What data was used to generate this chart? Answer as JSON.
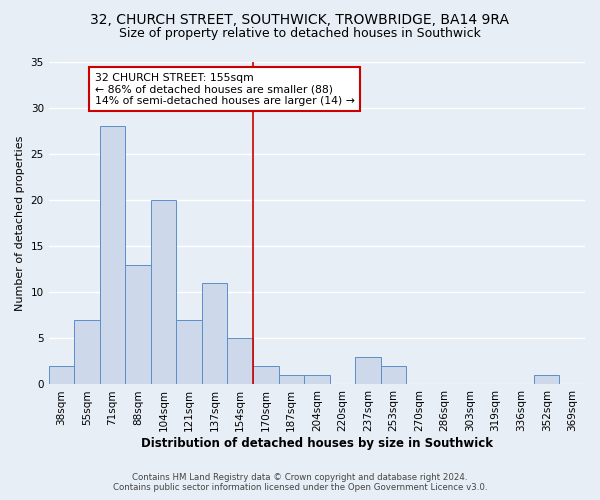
{
  "title": "32, CHURCH STREET, SOUTHWICK, TROWBRIDGE, BA14 9RA",
  "subtitle": "Size of property relative to detached houses in Southwick",
  "xlabel": "Distribution of detached houses by size in Southwick",
  "ylabel": "Number of detached properties",
  "footer_line1": "Contains HM Land Registry data © Crown copyright and database right 2024.",
  "footer_line2": "Contains public sector information licensed under the Open Government Licence v3.0.",
  "bin_labels": [
    "38sqm",
    "55sqm",
    "71sqm",
    "88sqm",
    "104sqm",
    "121sqm",
    "137sqm",
    "154sqm",
    "170sqm",
    "187sqm",
    "204sqm",
    "220sqm",
    "237sqm",
    "253sqm",
    "270sqm",
    "286sqm",
    "303sqm",
    "319sqm",
    "336sqm",
    "352sqm",
    "369sqm"
  ],
  "bar_values": [
    2,
    7,
    28,
    13,
    20,
    7,
    11,
    5,
    2,
    1,
    1,
    0,
    3,
    2,
    0,
    0,
    0,
    0,
    0,
    1,
    0
  ],
  "bar_color": "#cdd9ea",
  "bar_edge_color": "#5b8fc9",
  "vline_x": 7.5,
  "vline_color": "#cc0000",
  "ylim": [
    0,
    35
  ],
  "yticks": [
    0,
    5,
    10,
    15,
    20,
    25,
    30,
    35
  ],
  "annotation_text": "32 CHURCH STREET: 155sqm\n← 86% of detached houses are smaller (88)\n14% of semi-detached houses are larger (14) →",
  "annotation_box_color": "#ffffff",
  "annotation_box_edge": "#cc0000",
  "bg_color": "#e8eef6",
  "plot_bg_color": "#e8eef6",
  "grid_color": "#ffffff",
  "title_fontsize": 10,
  "subtitle_fontsize": 9,
  "ylabel_fontsize": 8,
  "xlabel_fontsize": 8.5,
  "tick_fontsize": 7.5,
  "annot_fontsize": 7.8
}
